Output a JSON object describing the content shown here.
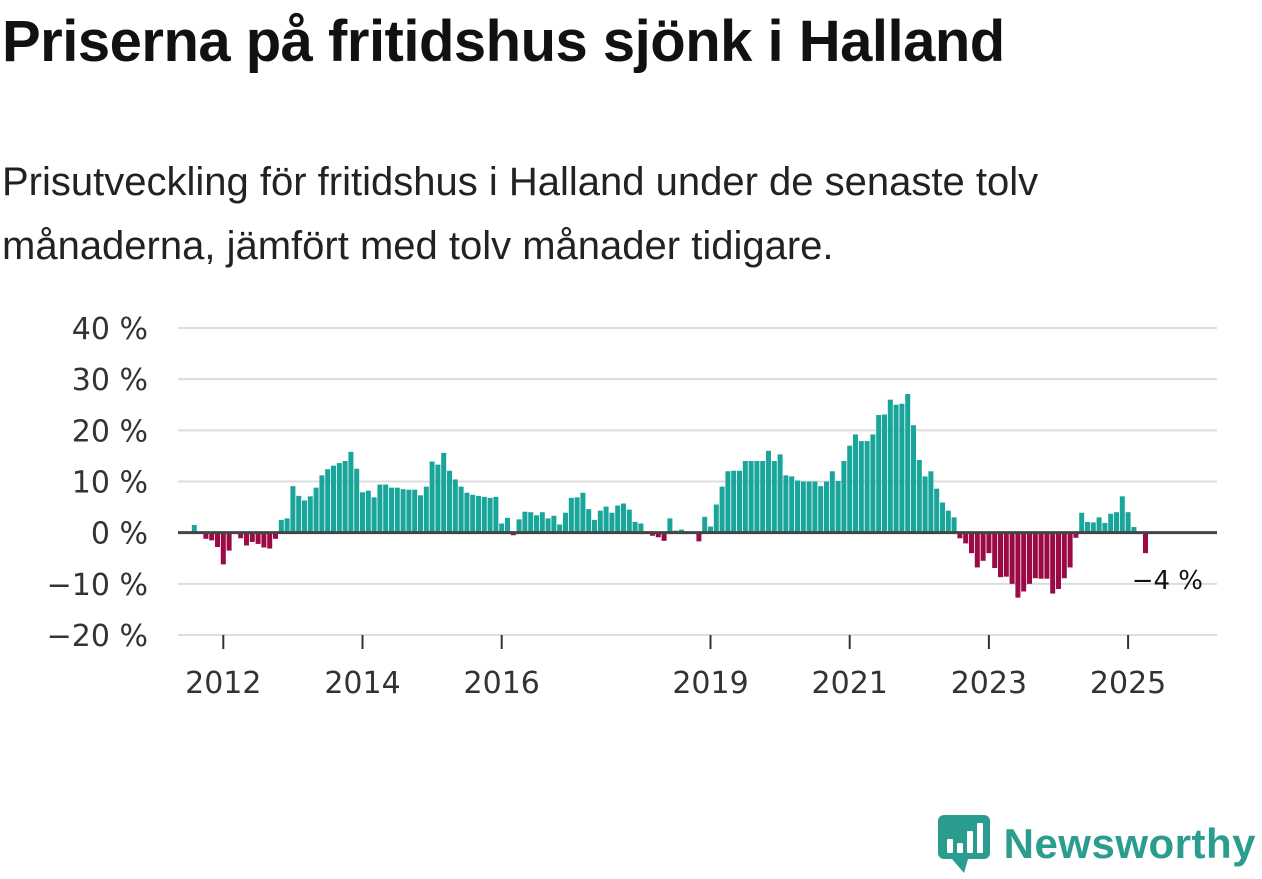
{
  "title": "Priserna på fritidshus sjönk i Halland",
  "subtitle": "Prisutveckling för fritidshus i Halland under de senaste tolv månaderna, jämfört med tolv månader tidigare.",
  "brand": {
    "name": "Newsworthy",
    "icon": "newsworthy-logo-icon"
  },
  "colors": {
    "positive": "#1aa59a",
    "negative": "#9b0a45",
    "zero_line": "#444444",
    "grid": "#dddddd",
    "brand": "#2a9d8f"
  },
  "chart_data": {
    "type": "bar",
    "title": "Priserna på fritidshus sjönk i Halland",
    "xlabel": "",
    "ylabel": "",
    "ylim": [
      -20,
      40
    ],
    "grid": true,
    "y_ticks": [
      40,
      30,
      20,
      10,
      0,
      -10,
      -20
    ],
    "y_tick_labels": [
      "40 %",
      "30 %",
      "20 %",
      "10 %",
      "0 %",
      "−10 %",
      "−20 %"
    ],
    "x_ticks": [
      {
        "label": "2012",
        "index": 6
      },
      {
        "label": "2014",
        "index": 30
      },
      {
        "label": "2016",
        "index": 54
      },
      {
        "label": "2019",
        "index": 90
      },
      {
        "label": "2021",
        "index": 114
      },
      {
        "label": "2023",
        "index": 138
      },
      {
        "label": "2025",
        "index": 162
      }
    ],
    "end_label": "−4 %",
    "values": [
      0,
      1.5,
      0,
      -1.2,
      -1.5,
      -2.8,
      -6.2,
      -3.5,
      0,
      -1.1,
      -2.5,
      -1.8,
      -2.2,
      -2.9,
      -3.1,
      -1.2,
      2.5,
      2.8,
      9.1,
      7.2,
      6.3,
      7.1,
      8.8,
      11.2,
      12.4,
      13.1,
      13.6,
      14.0,
      15.8,
      12.5,
      7.9,
      8.2,
      6.9,
      9.4,
      9.4,
      8.8,
      8.8,
      8.5,
      8.4,
      8.4,
      7.3,
      9.0,
      13.9,
      13.3,
      15.6,
      12.1,
      10.4,
      9.0,
      7.8,
      7.4,
      7.2,
      7.0,
      6.8,
      7.0,
      1.8,
      2.9,
      -0.5,
      2.6,
      4.1,
      4.0,
      3.4,
      4.0,
      2.8,
      3.3,
      1.6,
      3.9,
      6.8,
      6.9,
      7.8,
      4.6,
      2.5,
      4.3,
      5.1,
      3.9,
      5.3,
      5.7,
      4.5,
      2.1,
      1.8,
      0.3,
      -0.6,
      -0.9,
      -1.6,
      2.8,
      0.4,
      0.6,
      0,
      0,
      -1.7,
      3.1,
      1.2,
      5.5,
      9.0,
      12.0,
      12.1,
      12.1,
      14.0,
      14.0,
      14.0,
      14.0,
      16.0,
      14.0,
      15.3,
      11.2,
      11.0,
      10.2,
      10.0,
      10.0,
      10.0,
      9.1,
      10.0,
      12.0,
      10.1,
      14.0,
      17.0,
      19.2,
      17.9,
      17.9,
      19.2,
      23.0,
      23.1,
      26.0,
      25.0,
      25.2,
      27.1,
      21.0,
      14.2,
      11.0,
      12.0,
      8.6,
      5.9,
      4.3,
      3.0,
      -1.1,
      -2.1,
      -4.0,
      -6.8,
      -5.5,
      -4.0,
      -6.9,
      -8.7,
      -8.6,
      -10.0,
      -12.7,
      -11.5,
      -10.0,
      -8.9,
      -9.0,
      -9.0,
      -11.9,
      -11.0,
      -8.9,
      -6.8,
      -1.0,
      3.9,
      2.1,
      2.0,
      3.0,
      1.9,
      3.7,
      4.0,
      7.1,
      4.0,
      1.1,
      0,
      -4.0
    ]
  }
}
